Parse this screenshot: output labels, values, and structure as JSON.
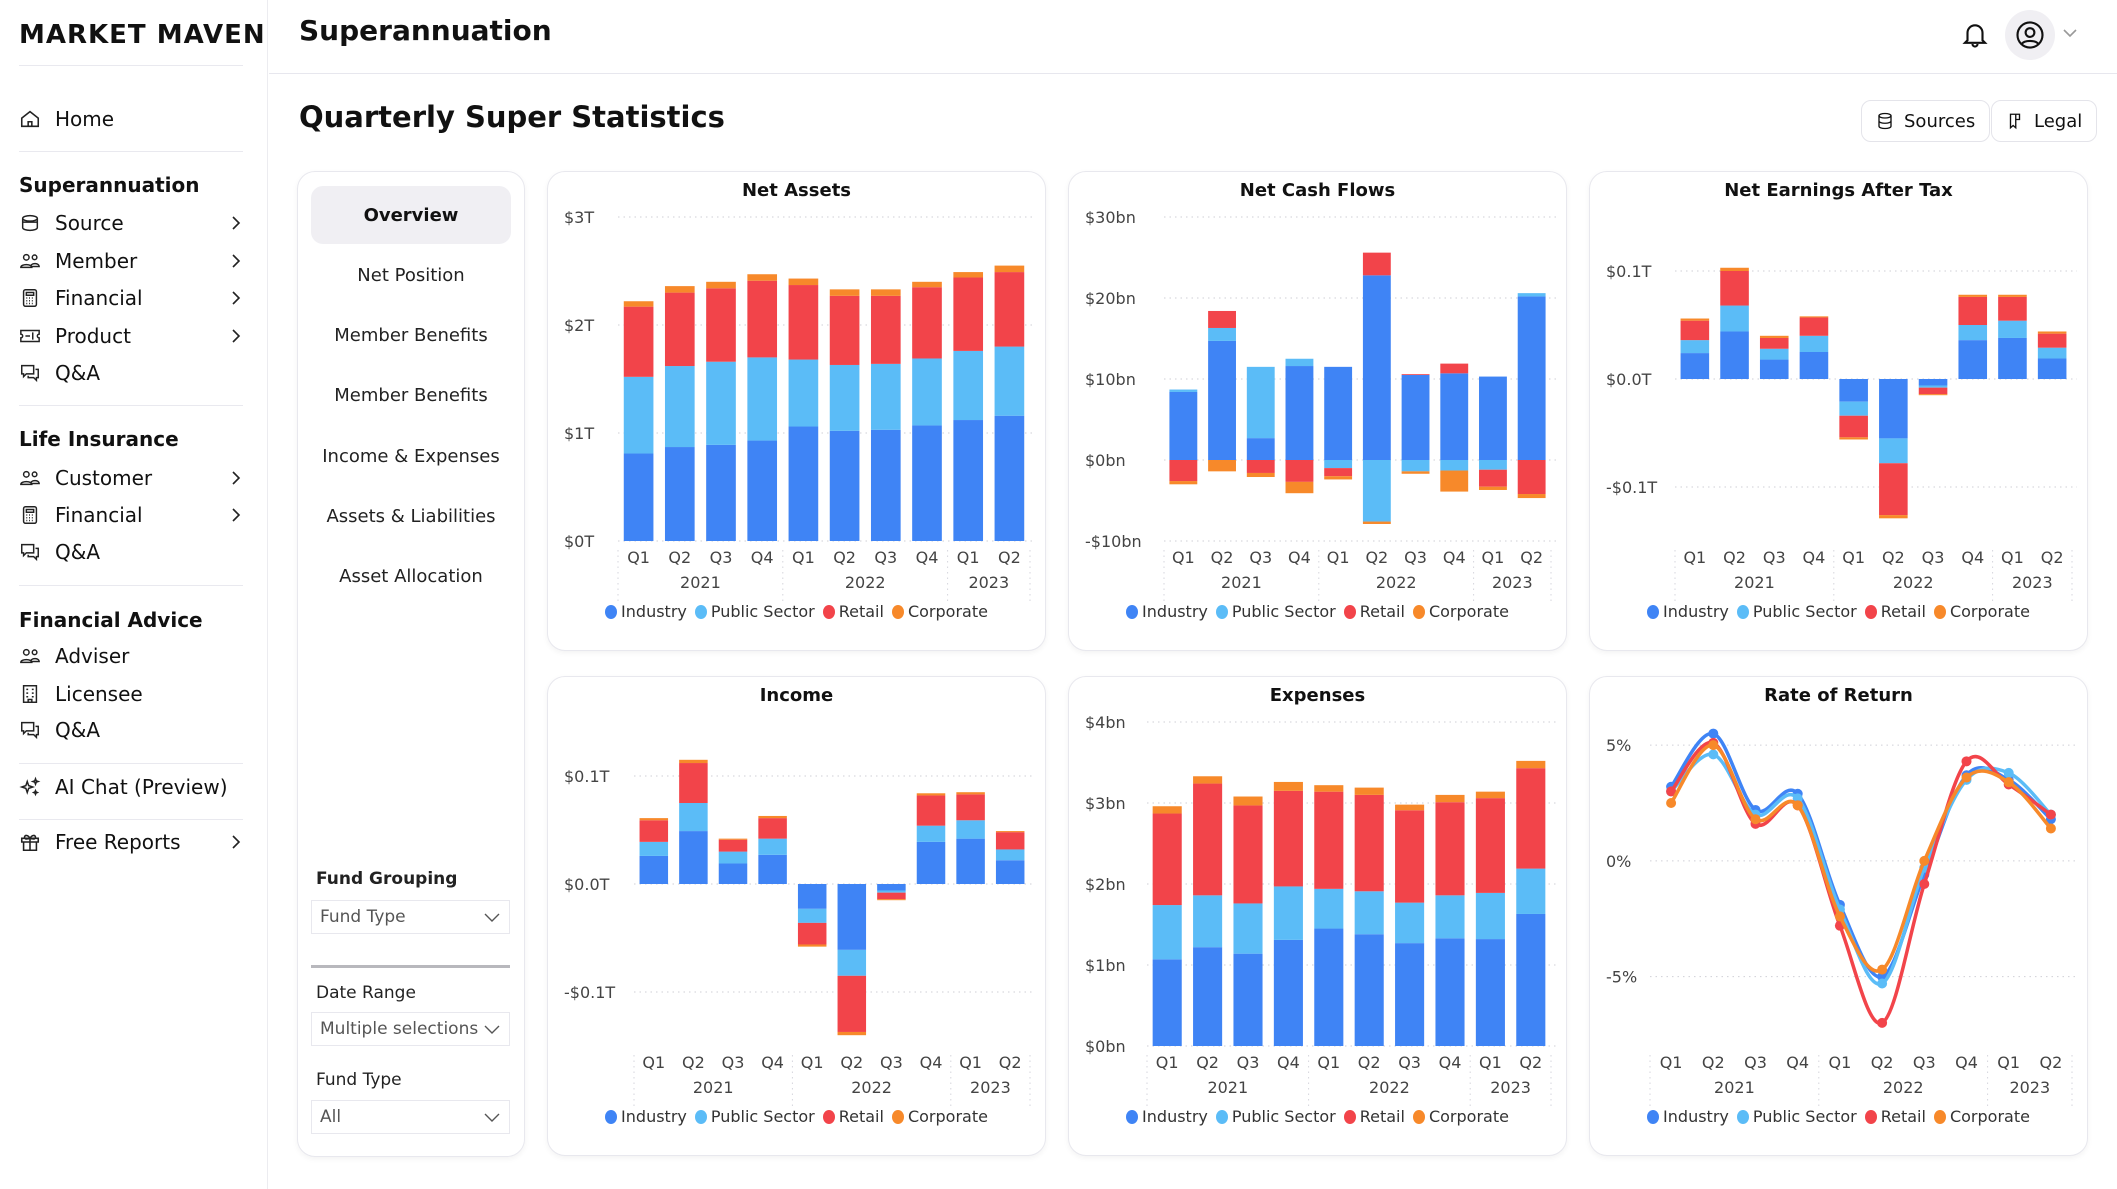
{
  "brand": "MARKET MAVEN",
  "header": {
    "title": "Superannuation"
  },
  "sidebar": {
    "home": "Home",
    "sections": [
      {
        "heading": "Superannuation",
        "items": [
          {
            "label": "Source",
            "icon": "database-icon",
            "chevron": true
          },
          {
            "label": "Member",
            "icon": "users-icon",
            "chevron": true
          },
          {
            "label": "Financial",
            "icon": "calculator-icon",
            "chevron": true
          },
          {
            "label": "Product",
            "icon": "ticket-icon",
            "chevron": true
          },
          {
            "label": "Q&A",
            "icon": "chat-icon",
            "chevron": false
          }
        ]
      },
      {
        "heading": "Life Insurance",
        "items": [
          {
            "label": "Customer",
            "icon": "users-icon",
            "chevron": true
          },
          {
            "label": "Financial",
            "icon": "calculator-icon",
            "chevron": true
          },
          {
            "label": "Q&A",
            "icon": "chat-icon",
            "chevron": false
          }
        ]
      },
      {
        "heading": "Financial Advice",
        "items": [
          {
            "label": "Adviser",
            "icon": "users-icon",
            "chevron": false
          },
          {
            "label": "Licensee",
            "icon": "building-icon",
            "chevron": false
          },
          {
            "label": "Q&A",
            "icon": "chat-icon",
            "chevron": false
          }
        ]
      }
    ],
    "ai_chat": "AI Chat (Preview)",
    "free_reports": "Free Reports"
  },
  "page": {
    "title": "Quarterly Super Statistics",
    "sources": "Sources",
    "legal": "Legal"
  },
  "tabs": [
    "Overview",
    "Net Position",
    "Member Benefits",
    "Member Benefits",
    "Income & Expenses",
    "Assets & Liabilities",
    "Asset Allocation"
  ],
  "active_tab": "Overview",
  "filters": {
    "fund_grouping": {
      "label": "Fund Grouping",
      "value": "Fund Type"
    },
    "date_range": {
      "label": "Date Range",
      "value": "Multiple selections"
    },
    "fund_type": {
      "label": "Fund Type",
      "value": "All"
    }
  },
  "series_colors": {
    "Industry": "#3f84f5",
    "Public Sector": "#5bbcf7",
    "Retail": "#f2444a",
    "Corporate": "#f7892a"
  },
  "chart_data": [
    {
      "type": "bar",
      "stacked": true,
      "title": "Net Assets",
      "categories": [
        "Q1",
        "Q2",
        "Q3",
        "Q4",
        "Q1",
        "Q2",
        "Q3",
        "Q4",
        "Q1",
        "Q2"
      ],
      "years": [
        {
          "label": "2021",
          "count": 4
        },
        {
          "label": "2022",
          "count": 4
        },
        {
          "label": "2023",
          "count": 2
        }
      ],
      "ylim": [
        0,
        3
      ],
      "yticks": [
        {
          "value": 0,
          "label": "$0T"
        },
        {
          "value": 1,
          "label": "$1T"
        },
        {
          "value": 2,
          "label": "$2T"
        },
        {
          "value": 3,
          "label": "$3T"
        }
      ],
      "series": [
        {
          "name": "Industry",
          "values": [
            0.81,
            0.87,
            0.89,
            0.93,
            1.06,
            1.02,
            1.03,
            1.07,
            1.12,
            1.16
          ]
        },
        {
          "name": "Public Sector",
          "values": [
            0.71,
            0.75,
            0.77,
            0.77,
            0.62,
            0.61,
            0.61,
            0.62,
            0.64,
            0.64
          ]
        },
        {
          "name": "Retail",
          "values": [
            0.65,
            0.68,
            0.68,
            0.71,
            0.69,
            0.64,
            0.63,
            0.66,
            0.68,
            0.69
          ]
        },
        {
          "name": "Corporate",
          "values": [
            0.05,
            0.06,
            0.06,
            0.06,
            0.06,
            0.06,
            0.06,
            0.05,
            0.05,
            0.06
          ]
        }
      ]
    },
    {
      "type": "bar",
      "stacked": true,
      "title": "Net Cash Flows",
      "categories": [
        "Q1",
        "Q2",
        "Q3",
        "Q4",
        "Q1",
        "Q2",
        "Q3",
        "Q4",
        "Q1",
        "Q2"
      ],
      "years": [
        {
          "label": "2021",
          "count": 4
        },
        {
          "label": "2022",
          "count": 4
        },
        {
          "label": "2023",
          "count": 2
        }
      ],
      "ylim": [
        -10,
        30
      ],
      "yticks": [
        {
          "value": -10,
          "label": "-$10bn"
        },
        {
          "value": 0,
          "label": "$0bn"
        },
        {
          "value": 10,
          "label": "$10bn"
        },
        {
          "value": 20,
          "label": "$20bn"
        },
        {
          "value": 30,
          "label": "$30bn"
        }
      ],
      "series": [
        {
          "name": "Industry",
          "values": [
            8.4,
            14.7,
            2.7,
            11.6,
            11.5,
            22.8,
            10.5,
            10.7,
            10.3,
            20.2
          ]
        },
        {
          "name": "Public Sector",
          "values": [
            0.3,
            1.6,
            8.8,
            0.9,
            -1.0,
            -7.6,
            -1.4,
            -1.3,
            -1.2,
            0.4
          ]
        },
        {
          "name": "Retail",
          "values": [
            -2.6,
            2.1,
            -1.6,
            -2.7,
            -1.0,
            2.8,
            0.1,
            1.2,
            -2.1,
            -4.2
          ]
        },
        {
          "name": "Corporate",
          "values": [
            -0.4,
            -1.4,
            -0.5,
            -1.4,
            -0.4,
            -0.3,
            -0.3,
            -2.6,
            -0.4,
            -0.5
          ]
        }
      ]
    },
    {
      "type": "bar",
      "stacked": true,
      "title": "Net Earnings After Tax",
      "categories": [
        "Q1",
        "Q2",
        "Q3",
        "Q4",
        "Q1",
        "Q2",
        "Q3",
        "Q4",
        "Q1",
        "Q2"
      ],
      "years": [
        {
          "label": "2021",
          "count": 4
        },
        {
          "label": "2022",
          "count": 4
        },
        {
          "label": "2023",
          "count": 2
        }
      ],
      "ylim": [
        -0.15,
        0.15
      ],
      "yticks": [
        {
          "value": -0.1,
          "label": "-$0.1T"
        },
        {
          "value": 0,
          "label": "$0.0T"
        },
        {
          "value": 0.1,
          "label": "$0.1T"
        }
      ],
      "series": [
        {
          "name": "Industry",
          "values": [
            0.024,
            0.044,
            0.018,
            0.025,
            -0.021,
            -0.055,
            -0.006,
            0.036,
            0.038,
            0.019
          ]
        },
        {
          "name": "Public Sector",
          "values": [
            0.012,
            0.024,
            0.01,
            0.015,
            -0.013,
            -0.023,
            -0.002,
            0.014,
            0.016,
            0.01
          ]
        },
        {
          "name": "Retail",
          "values": [
            0.018,
            0.032,
            0.01,
            0.017,
            -0.02,
            -0.048,
            -0.006,
            0.026,
            0.022,
            0.013
          ]
        },
        {
          "name": "Corporate",
          "values": [
            0.002,
            0.003,
            0.002,
            0.001,
            -0.002,
            -0.003,
            -0.001,
            0.002,
            0.002,
            0.002
          ]
        }
      ]
    },
    {
      "type": "bar",
      "stacked": true,
      "title": "Income",
      "categories": [
        "Q1",
        "Q2",
        "Q3",
        "Q4",
        "Q1",
        "Q2",
        "Q3",
        "Q4",
        "Q1",
        "Q2"
      ],
      "years": [
        {
          "label": "2021",
          "count": 4
        },
        {
          "label": "2022",
          "count": 4
        },
        {
          "label": "2023",
          "count": 2
        }
      ],
      "ylim": [
        -0.15,
        0.15
      ],
      "yticks": [
        {
          "value": -0.1,
          "label": "-$0.1T"
        },
        {
          "value": 0,
          "label": "$0.0T"
        },
        {
          "value": 0.1,
          "label": "$0.1T"
        }
      ],
      "series": [
        {
          "name": "Industry",
          "values": [
            0.026,
            0.049,
            0.019,
            0.027,
            -0.023,
            -0.061,
            -0.006,
            0.039,
            0.042,
            0.022
          ]
        },
        {
          "name": "Public Sector",
          "values": [
            0.013,
            0.026,
            0.011,
            0.015,
            -0.013,
            -0.024,
            -0.002,
            0.015,
            0.017,
            0.01
          ]
        },
        {
          "name": "Retail",
          "values": [
            0.02,
            0.037,
            0.011,
            0.019,
            -0.02,
            -0.052,
            -0.006,
            0.028,
            0.024,
            0.016
          ]
        },
        {
          "name": "Corporate",
          "values": [
            0.002,
            0.003,
            0.001,
            0.002,
            -0.002,
            -0.003,
            -0.001,
            0.002,
            0.002,
            0.001
          ]
        }
      ]
    },
    {
      "type": "bar",
      "stacked": true,
      "title": "Expenses",
      "categories": [
        "Q1",
        "Q2",
        "Q3",
        "Q4",
        "Q1",
        "Q2",
        "Q3",
        "Q4",
        "Q1",
        "Q2"
      ],
      "years": [
        {
          "label": "2021",
          "count": 4
        },
        {
          "label": "2022",
          "count": 4
        },
        {
          "label": "2023",
          "count": 2
        }
      ],
      "ylim": [
        0,
        4
      ],
      "yticks": [
        {
          "value": 0,
          "label": "$0bn"
        },
        {
          "value": 1,
          "label": "$1bn"
        },
        {
          "value": 2,
          "label": "$2bn"
        },
        {
          "value": 3,
          "label": "$3bn"
        },
        {
          "value": 4,
          "label": "$4bn"
        }
      ],
      "series": [
        {
          "name": "Industry",
          "values": [
            1.07,
            1.22,
            1.14,
            1.31,
            1.45,
            1.38,
            1.27,
            1.33,
            1.32,
            1.63
          ]
        },
        {
          "name": "Public Sector",
          "values": [
            0.67,
            0.64,
            0.62,
            0.66,
            0.49,
            0.53,
            0.5,
            0.53,
            0.57,
            0.56
          ]
        },
        {
          "name": "Retail",
          "values": [
            1.13,
            1.38,
            1.21,
            1.18,
            1.2,
            1.19,
            1.14,
            1.15,
            1.17,
            1.24
          ]
        },
        {
          "name": "Corporate",
          "values": [
            0.09,
            0.09,
            0.11,
            0.11,
            0.08,
            0.09,
            0.07,
            0.09,
            0.08,
            0.09
          ]
        }
      ]
    },
    {
      "type": "line",
      "title": "Rate of Return",
      "categories": [
        "Q1",
        "Q2",
        "Q3",
        "Q4",
        "Q1",
        "Q2",
        "Q3",
        "Q4",
        "Q1",
        "Q2"
      ],
      "years": [
        {
          "label": "2021",
          "count": 4
        },
        {
          "label": "2022",
          "count": 4
        },
        {
          "label": "2023",
          "count": 2
        }
      ],
      "ylim": [
        -8,
        6
      ],
      "yticks": [
        {
          "value": -5,
          "label": "-5%"
        },
        {
          "value": 0,
          "label": "0%"
        },
        {
          "value": 5,
          "label": "5%"
        }
      ],
      "series": [
        {
          "name": "Industry",
          "values": [
            3.2,
            5.5,
            2.2,
            2.9,
            -1.9,
            -5.0,
            -0.6,
            3.7,
            3.5,
            1.8
          ]
        },
        {
          "name": "Public Sector",
          "values": [
            3.0,
            4.6,
            2.0,
            2.7,
            -2.1,
            -5.3,
            -0.3,
            3.5,
            3.8,
            2.0
          ]
        },
        {
          "name": "Retail",
          "values": [
            3.0,
            5.1,
            1.6,
            2.4,
            -2.8,
            -7.0,
            -1.0,
            4.3,
            3.3,
            2.0
          ]
        },
        {
          "name": "Corporate",
          "values": [
            2.5,
            5.0,
            1.8,
            2.4,
            -2.4,
            -4.7,
            0.0,
            3.6,
            3.4,
            1.4
          ]
        }
      ]
    }
  ]
}
